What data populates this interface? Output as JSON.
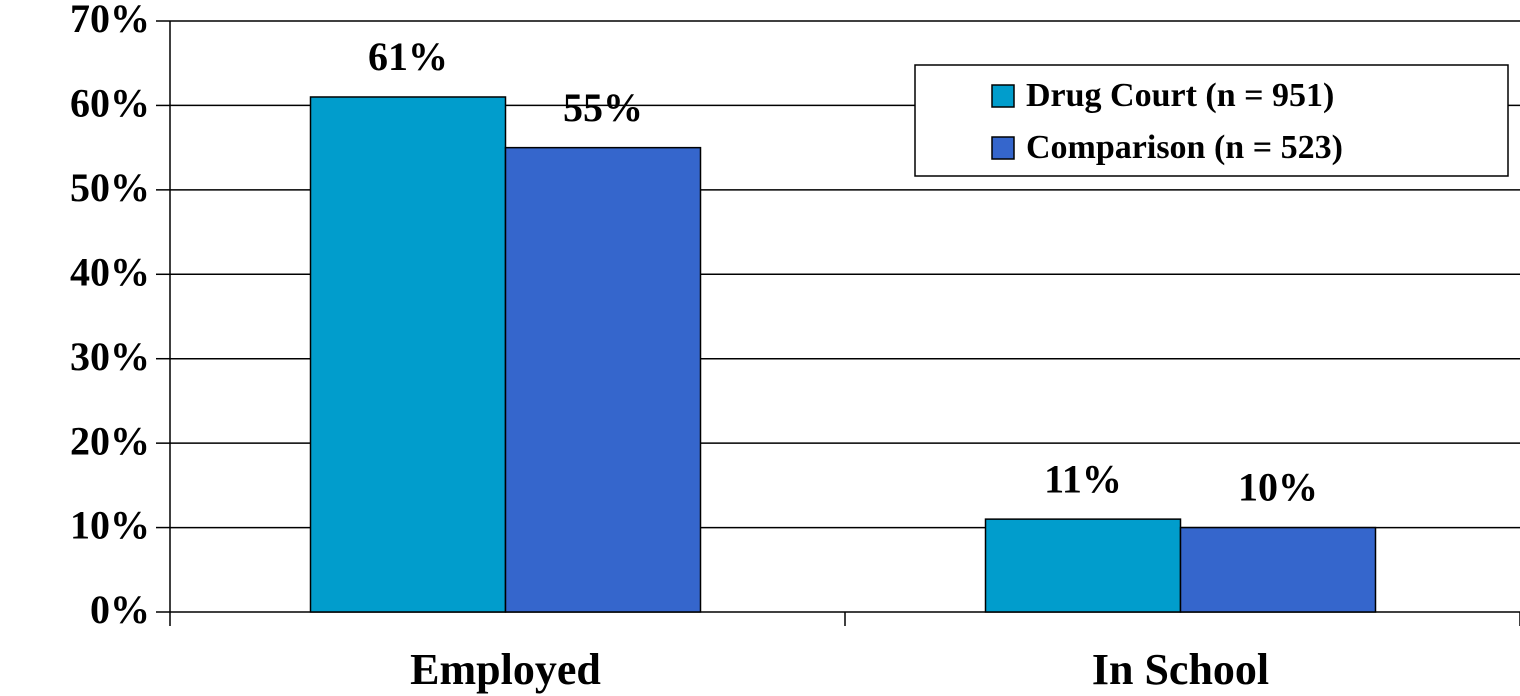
{
  "chart_data": {
    "type": "bar",
    "categories": [
      "Employed",
      "In School"
    ],
    "series": [
      {
        "name": "Drug Court (n = 951)",
        "color": "#019dcc",
        "values": [
          61,
          11
        ],
        "value_labels": [
          "61%",
          "11%"
        ]
      },
      {
        "name": "Comparison (n = 523)",
        "color": "#3566cc",
        "values": [
          55,
          10
        ],
        "value_labels": [
          "55%",
          "10%"
        ]
      }
    ],
    "ylim": [
      0,
      70
    ],
    "yticks": [
      {
        "value": 0,
        "label": "0%"
      },
      {
        "value": 10,
        "label": "10%"
      },
      {
        "value": 20,
        "label": "20%"
      },
      {
        "value": 30,
        "label": "30%"
      },
      {
        "value": 40,
        "label": "40%"
      },
      {
        "value": 50,
        "label": "50%"
      },
      {
        "value": 60,
        "label": "60%"
      },
      {
        "value": 70,
        "label": "70%"
      }
    ],
    "grid": true,
    "legend": "upper right"
  }
}
